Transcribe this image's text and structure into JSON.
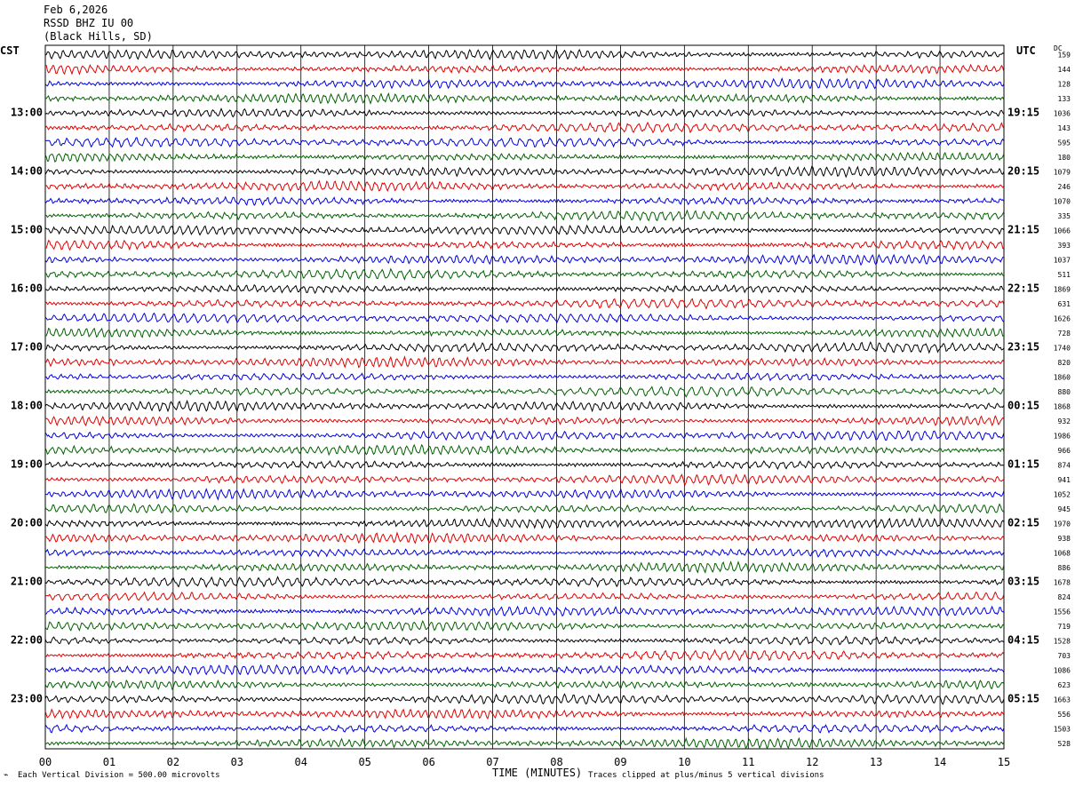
{
  "header": {
    "date": "Feb 6,2026",
    "station": "RSSD BHZ IU 00",
    "location": "(Black Hills, SD)"
  },
  "left_zone": "CST",
  "right_zone": "UTC",
  "dc_label": "DC",
  "footer": {
    "division": "Each Vertical Division =  500.00 microvolts",
    "clip_note": "Traces clipped at plus/minus 5 vertical divisions"
  },
  "colors": {
    "trace_cycle": [
      "#000000",
      "#e00000",
      "#0000e0",
      "#006000"
    ],
    "grid": "#000000"
  },
  "chart_data": {
    "type": "line",
    "title": "",
    "xlabel": "TIME (MINUTES)",
    "x_ticks": [
      "00",
      "01",
      "02",
      "03",
      "04",
      "05",
      "06",
      "07",
      "08",
      "09",
      "10",
      "11",
      "12",
      "13",
      "14",
      "15"
    ],
    "xlim": [
      0,
      15
    ],
    "trace_count": 48,
    "left_hour_labels": [
      "13:00",
      "14:00",
      "15:00",
      "16:00",
      "17:00",
      "18:00",
      "19:00",
      "20:00",
      "21:00",
      "22:00",
      "23:00"
    ],
    "right_hour_labels": [
      "19:15",
      "20:15",
      "21:15",
      "22:15",
      "23:15",
      "00:15",
      "01:15",
      "02:15",
      "03:15",
      "04:15",
      "05:15"
    ],
    "dc_offsets": [
      "159",
      "144",
      "128",
      "133",
      "1036",
      "143",
      "595",
      "180",
      "1079",
      "246",
      "1070",
      "335",
      "1066",
      "393",
      "1037",
      "511",
      "1869",
      "631",
      "1626",
      "728",
      "1740",
      "820",
      "1860",
      "880",
      "1868",
      "932",
      "1986",
      "966",
      "874",
      "941",
      "1052",
      "945",
      "1970",
      "938",
      "1068",
      "886",
      "1678",
      "824",
      "1556",
      "719",
      "1528",
      "703",
      "1086",
      "623",
      "1663",
      "556",
      "1503",
      "528"
    ]
  }
}
